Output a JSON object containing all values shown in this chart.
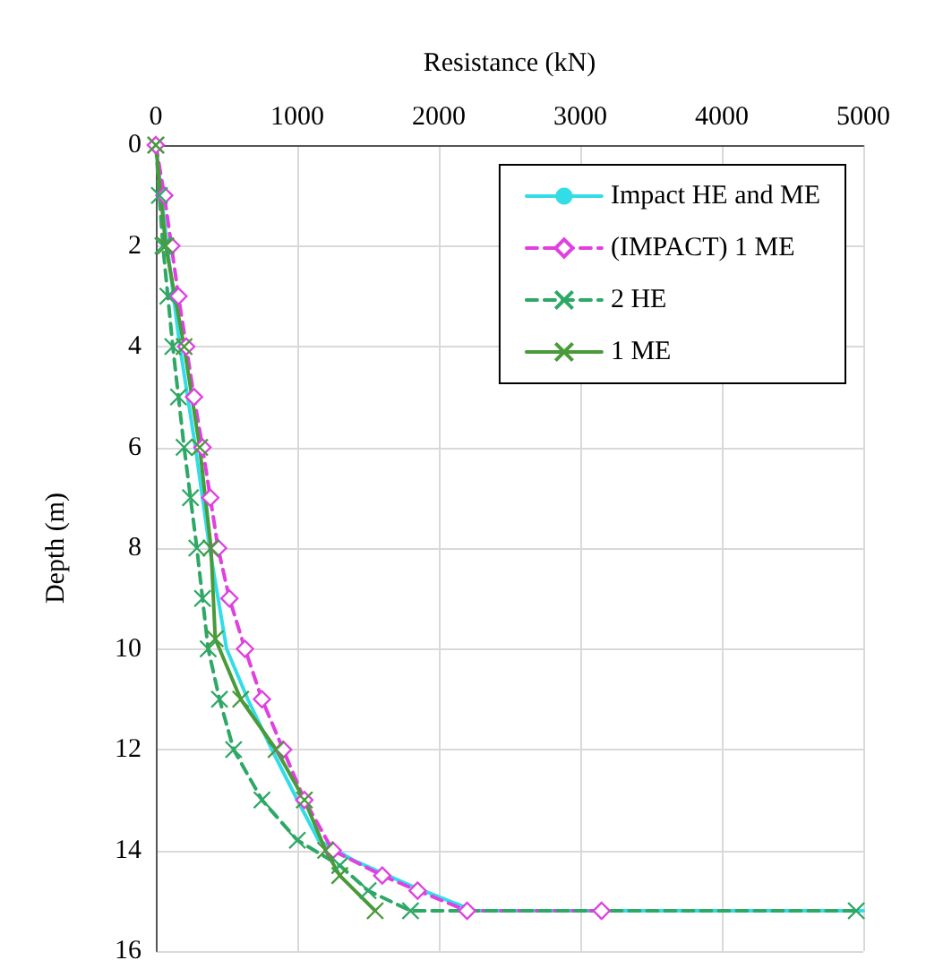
{
  "chart_data": {
    "type": "line",
    "xlabel": "Resistance (kN)",
    "ylabel": "Depth (m)",
    "xlim": [
      0,
      5000
    ],
    "xticks": [
      0,
      1000,
      2000,
      3000,
      4000,
      5000
    ],
    "ylim": [
      16,
      0
    ],
    "yticks": [
      0,
      2,
      4,
      6,
      8,
      10,
      12,
      14,
      16
    ],
    "grid": true,
    "legend": "top right",
    "series": [
      {
        "name": "Impact HE and ME",
        "color": "#33dde8",
        "marker": "none",
        "line_style": "solid",
        "x": [
          0,
          80,
          170,
          280,
          380,
          500,
          650,
          820,
          1000,
          1150,
          1400,
          1800,
          2250,
          5000
        ],
        "values": [
          0,
          2,
          4,
          6,
          8,
          10,
          11,
          12,
          13,
          13.8,
          14.2,
          14.7,
          15.2,
          15.2
        ]
      },
      {
        "name": "(IMPACT) 1 ME",
        "color": "#e040e0",
        "marker": "diamond",
        "line_style": "dashed",
        "x": [
          0,
          60,
          110,
          160,
          215,
          270,
          330,
          385,
          440,
          520,
          630,
          750,
          900,
          1050,
          1250,
          1600,
          1850,
          2200,
          3150
        ],
        "values": [
          0,
          1,
          2,
          3,
          4,
          5,
          6,
          7,
          8,
          9,
          10,
          11,
          12,
          13,
          14,
          14.5,
          14.8,
          15.2,
          15.2
        ]
      },
      {
        "name": "2 HE",
        "color": "#2ea866",
        "marker": "cross",
        "line_style": "dashed",
        "x": [
          0,
          25,
          50,
          85,
          120,
          160,
          200,
          245,
          290,
          330,
          370,
          450,
          550,
          750,
          1000,
          1300,
          1500,
          1800,
          4950
        ],
        "values": [
          0,
          1,
          2,
          3,
          4,
          5,
          6,
          7,
          8,
          9,
          10,
          11,
          12,
          13,
          13.8,
          14.3,
          14.8,
          15.2,
          15.2
        ]
      },
      {
        "name": "1 ME",
        "color": "#4a9a3a",
        "marker": "cross",
        "line_style": "solid",
        "x": [
          0,
          70,
          200,
          310,
          390,
          420,
          600,
          850,
          1050,
          1200,
          1300,
          1550
        ],
        "values": [
          0,
          2,
          4,
          6,
          8,
          9.8,
          11,
          12,
          13,
          14,
          14.5,
          15.2
        ]
      }
    ]
  }
}
